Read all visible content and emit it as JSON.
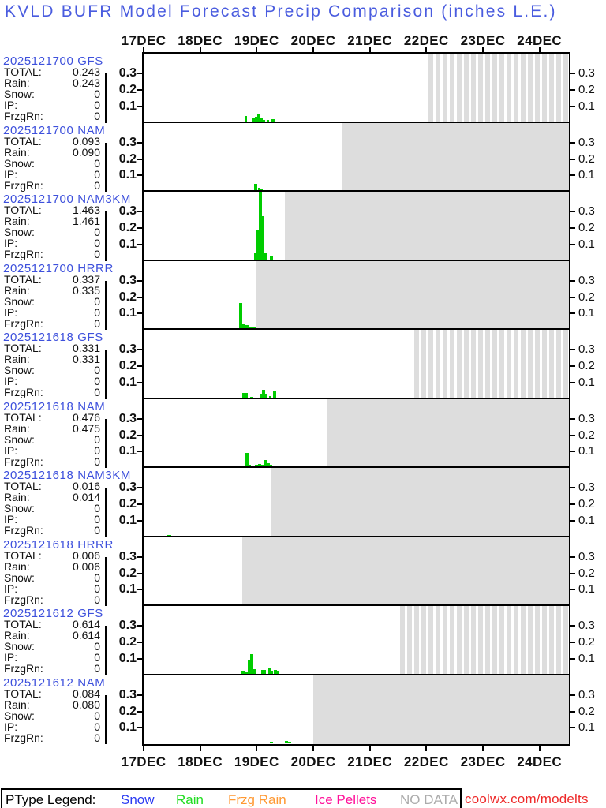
{
  "title": "KVLD BUFR Model Forecast Precip Comparison (inches L.E.)",
  "watermark": "coolwx.com/modelts",
  "colors": {
    "heading_blue": "#4A5CDF",
    "run_blue": "#3D50DC",
    "bar_green": "#00CC00",
    "nodata_fill": "#DDDDDD",
    "snow": "#2B3BF2",
    "rain": "#22DD22",
    "frzg_rain": "#FF9933",
    "ice_pellets": "#FF1199",
    "no_data": "#ABABAB",
    "url_red": "#EE2A2A"
  },
  "axis": {
    "date_labels": [
      "17DEC",
      "18DEC",
      "19DEC",
      "20DEC",
      "21DEC",
      "22DEC",
      "23DEC",
      "24DEC"
    ],
    "y_tick_labels": [
      "0.1",
      "0.2",
      "0.3"
    ]
  },
  "legend": {
    "heading": "PType Legend:",
    "items": [
      {
        "label": "Snow",
        "color": "snow"
      },
      {
        "label": "Rain",
        "color": "rain"
      },
      {
        "label": "Frzg Rain",
        "color": "frzg_rain"
      },
      {
        "label": "Ice Pellets",
        "color": "ice_pellets"
      },
      {
        "label": "NO DATA",
        "color": "no_data"
      }
    ]
  },
  "stat_labels": [
    "TOTAL:",
    "Rain:",
    "Snow:",
    "IP:",
    "FrzgRn:"
  ],
  "chart_data": {
    "type": "bar",
    "title": "KVLD BUFR Model Forecast Precip Comparison (inches L.E.)",
    "x_start": "17DEC 00Z",
    "x_axis_days": [
      "17DEC",
      "18DEC",
      "19DEC",
      "20DEC",
      "21DEC",
      "22DEC",
      "23DEC",
      "24DEC"
    ],
    "y_units": "inches",
    "y_ticks": [
      0.1,
      0.2,
      0.3
    ],
    "panel_y_max": 0.42,
    "bar_note": "d = days after 17DEC 00Z, h = bar width in hours, v = precip inches (estimated from plot)",
    "panels": [
      {
        "run": "2025121700",
        "model": "GFS",
        "values": [
          "0.243",
          "0.243",
          "0",
          "0",
          "0"
        ],
        "no_data": {
          "start_day": 5.0,
          "style": "striped"
        },
        "bars": [
          {
            "d": 1.786,
            "h": 1.0,
            "v": 0.035
          },
          {
            "d": 1.925,
            "h": 1.0,
            "v": 0.018
          },
          {
            "d": 1.967,
            "h": 1.0,
            "v": 0.03
          },
          {
            "d": 2.009,
            "h": 1.34,
            "v": 0.048
          },
          {
            "d": 2.065,
            "h": 1.0,
            "v": 0.022
          },
          {
            "d": 2.107,
            "h": 1.0,
            "v": 0.012
          },
          {
            "d": 2.177,
            "h": 1.0,
            "v": 0.008
          },
          {
            "d": 2.26,
            "h": 1.34,
            "v": 0.013
          }
        ]
      },
      {
        "run": "2025121700",
        "model": "NAM",
        "values": [
          "0.093",
          "0.090",
          "0",
          "0",
          "0"
        ],
        "no_data": {
          "start_day": 3.5,
          "style": "solid"
        },
        "bars": [
          {
            "d": 1.953,
            "h": 1.34,
            "v": 0.038
          },
          {
            "d": 2.023,
            "h": 0.67,
            "v": 0.014
          },
          {
            "d": 2.065,
            "h": 1.0,
            "v": 0.008
          }
        ]
      },
      {
        "run": "2025121700",
        "model": "NAM3KM",
        "values": [
          "1.463",
          "1.461",
          "0",
          "0",
          "0"
        ],
        "no_data": {
          "start_day": 2.5,
          "style": "solid"
        },
        "bars": [
          {
            "d": 1.953,
            "h": 1.0,
            "v": 0.04
          },
          {
            "d": 1.995,
            "h": 1.0,
            "v": 0.185
          },
          {
            "d": 2.037,
            "h": 1.34,
            "v": 0.43
          },
          {
            "d": 2.093,
            "h": 1.0,
            "v": 0.265
          },
          {
            "d": 2.135,
            "h": 1.0,
            "v": 0.04
          },
          {
            "d": 2.232,
            "h": 1.34,
            "v": 0.025
          }
        ]
      },
      {
        "run": "2025121700",
        "model": "HRRR",
        "values": [
          "0.337",
          "0.335",
          "0",
          "0",
          "0"
        ],
        "no_data": {
          "start_day": 2.0,
          "style": "solid"
        },
        "bars": [
          {
            "d": 1.688,
            "h": 1.34,
            "v": 0.155
          },
          {
            "d": 1.744,
            "h": 1.34,
            "v": 0.025
          },
          {
            "d": 1.8,
            "h": 1.67,
            "v": 0.02
          },
          {
            "d": 1.87,
            "h": 1.34,
            "v": 0.012
          },
          {
            "d": 1.925,
            "h": 1.34,
            "v": 0.01
          }
        ]
      },
      {
        "run": "2025121618",
        "model": "GFS",
        "values": [
          "0.331",
          "0.331",
          "0",
          "0",
          "0"
        ],
        "no_data": {
          "start_day": 4.75,
          "style": "striped"
        },
        "bars": [
          {
            "d": 1.744,
            "h": 2.34,
            "v": 0.028
          },
          {
            "d": 1.884,
            "h": 1.34,
            "v": 0.006
          },
          {
            "d": 2.051,
            "h": 1.0,
            "v": 0.024
          },
          {
            "d": 2.093,
            "h": 1.34,
            "v": 0.05
          },
          {
            "d": 2.149,
            "h": 1.0,
            "v": 0.024
          },
          {
            "d": 2.218,
            "h": 1.0,
            "v": 0.01
          },
          {
            "d": 2.288,
            "h": 1.34,
            "v": 0.045
          }
        ]
      },
      {
        "run": "2025121618",
        "model": "NAM",
        "values": [
          "0.476",
          "0.475",
          "0",
          "0",
          "0"
        ],
        "no_data": {
          "start_day": 3.25,
          "style": "solid"
        },
        "bars": [
          {
            "d": 1.8,
            "h": 1.34,
            "v": 0.082
          },
          {
            "d": 1.856,
            "h": 1.0,
            "v": 0.01
          },
          {
            "d": 1.967,
            "h": 1.34,
            "v": 0.01
          },
          {
            "d": 2.023,
            "h": 1.34,
            "v": 0.015
          },
          {
            "d": 2.079,
            "h": 1.34,
            "v": 0.012
          },
          {
            "d": 2.135,
            "h": 1.34,
            "v": 0.04
          },
          {
            "d": 2.191,
            "h": 1.0,
            "v": 0.02
          },
          {
            "d": 2.232,
            "h": 1.0,
            "v": 0.012
          }
        ]
      },
      {
        "run": "2025121618",
        "model": "NAM3KM",
        "values": [
          "0.016",
          "0.014",
          "0",
          "0",
          "0"
        ],
        "no_data": {
          "start_day": 2.25,
          "style": "solid"
        },
        "bars": [
          {
            "d": 0.419,
            "h": 1.67,
            "v": 0.006
          }
        ]
      },
      {
        "run": "2025121618",
        "model": "HRRR",
        "values": [
          "0.006",
          "0.006",
          "0",
          "0",
          "0"
        ],
        "no_data": {
          "start_day": 1.75,
          "style": "solid"
        },
        "bars": [
          {
            "d": 0.391,
            "h": 1.34,
            "v": 0.004
          }
        ]
      },
      {
        "run": "2025121612",
        "model": "GFS",
        "values": [
          "0.614",
          "0.614",
          "0",
          "0",
          "0"
        ],
        "no_data": {
          "start_day": 4.5,
          "style": "striped"
        },
        "bars": [
          {
            "d": 1.73,
            "h": 1.67,
            "v": 0.02
          },
          {
            "d": 1.8,
            "h": 1.0,
            "v": 0.012
          },
          {
            "d": 1.842,
            "h": 1.0,
            "v": 0.082
          },
          {
            "d": 1.884,
            "h": 1.34,
            "v": 0.122
          },
          {
            "d": 1.94,
            "h": 1.0,
            "v": 0.03
          },
          {
            "d": 2.079,
            "h": 2.0,
            "v": 0.024
          },
          {
            "d": 2.205,
            "h": 1.0,
            "v": 0.039
          },
          {
            "d": 2.246,
            "h": 1.0,
            "v": 0.02
          },
          {
            "d": 2.302,
            "h": 1.34,
            "v": 0.022
          },
          {
            "d": 2.358,
            "h": 1.0,
            "v": 0.015
          }
        ]
      },
      {
        "run": "2025121612",
        "model": "NAM",
        "values": [
          "0.084",
          "0.080",
          "0",
          "0",
          "0"
        ],
        "no_data": {
          "start_day": 3.0,
          "style": "solid"
        },
        "bars": [
          {
            "d": 2.232,
            "h": 1.34,
            "v": 0.01
          },
          {
            "d": 2.288,
            "h": 1.0,
            "v": 0.006
          },
          {
            "d": 2.497,
            "h": 1.34,
            "v": 0.016
          },
          {
            "d": 2.553,
            "h": 1.34,
            "v": 0.012
          }
        ]
      }
    ]
  }
}
